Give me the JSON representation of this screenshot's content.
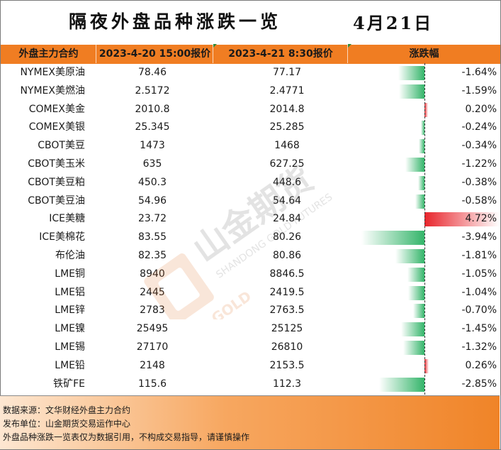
{
  "title": "隔夜外盘品种涨跌一览",
  "date": "4月21日",
  "header": {
    "contract": "外盘主力合约",
    "price1": "2023-4-20 15:00报价",
    "price2": "2023-4-21 8:30报价",
    "change": "涨跌幅"
  },
  "rows": [
    {
      "name": "NYMEX美原油",
      "p1": "78.46",
      "p2": "77.17",
      "chg": "-1.64%",
      "chg_value": -1.64
    },
    {
      "name": "NYMEX美燃油",
      "p1": "2.5172",
      "p2": "2.4771",
      "chg": "-1.59%",
      "chg_value": -1.59
    },
    {
      "name": "COMEX美金",
      "p1": "2010.8",
      "p2": "2014.8",
      "chg": "0.20%",
      "chg_value": 0.2
    },
    {
      "name": "COMEX美银",
      "p1": "25.345",
      "p2": "25.285",
      "chg": "-0.24%",
      "chg_value": -0.24
    },
    {
      "name": "CBOT美豆",
      "p1": "1473",
      "p2": "1468",
      "chg": "-0.34%",
      "chg_value": -0.34
    },
    {
      "name": "CBOT美玉米",
      "p1": "635",
      "p2": "627.25",
      "chg": "-1.22%",
      "chg_value": -1.22
    },
    {
      "name": "CBOT美豆粕",
      "p1": "450.3",
      "p2": "448.6",
      "chg": "-0.38%",
      "chg_value": -0.38
    },
    {
      "name": "CBOT美豆油",
      "p1": "54.96",
      "p2": "54.64",
      "chg": "-0.58%",
      "chg_value": -0.58
    },
    {
      "name": "ICE美糖",
      "p1": "23.72",
      "p2": "24.84",
      "chg": "4.72%",
      "chg_value": 4.72
    },
    {
      "name": "ICE美棉花",
      "p1": "83.55",
      "p2": "80.26",
      "chg": "-3.94%",
      "chg_value": -3.94
    },
    {
      "name": "布伦油",
      "p1": "82.35",
      "p2": "80.86",
      "chg": "-1.81%",
      "chg_value": -1.81
    },
    {
      "name": "LME铜",
      "p1": "8940",
      "p2": "8846.5",
      "chg": "-1.05%",
      "chg_value": -1.05
    },
    {
      "name": "LME铝",
      "p1": "2445",
      "p2": "2419.5",
      "chg": "-1.04%",
      "chg_value": -1.04
    },
    {
      "name": "LME锌",
      "p1": "2783",
      "p2": "2763.5",
      "chg": "-0.70%",
      "chg_value": -0.7
    },
    {
      "name": "LME镍",
      "p1": "25495",
      "p2": "25125",
      "chg": "-1.45%",
      "chg_value": -1.45
    },
    {
      "name": "LME锡",
      "p1": "27170",
      "p2": "26810",
      "chg": "-1.32%",
      "chg_value": -1.32
    },
    {
      "name": "LME铅",
      "p1": "2148",
      "p2": "2153.5",
      "chg": "0.26%",
      "chg_value": 0.26
    },
    {
      "name": "铁矿FE",
      "p1": "115.6",
      "p2": "112.3",
      "chg": "-2.85%",
      "chg_value": -2.85
    }
  ],
  "footer": {
    "source": "数据来源：文华财经外盘主力合约",
    "publisher": "发布单位：山金期货交易运作中心",
    "disclaimer": "外盘品种涨跌一览表仅为数据引用，不构成交易指导，请谨慎操作"
  },
  "watermark": {
    "brand_cn": "山金期货",
    "brand_en": "SHANDONG GOLD FUTURES",
    "logo_text": "SD-GOLD"
  },
  "colors": {
    "header_bg": "#f07d22",
    "negative_bar": "#34b56a",
    "positive_bar": "#e8242b"
  }
}
